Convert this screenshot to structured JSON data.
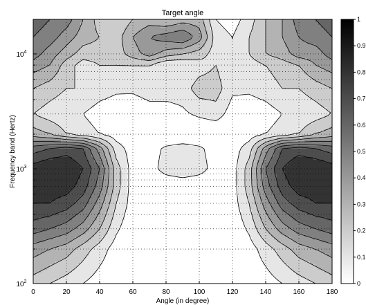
{
  "chart_data": {
    "type": "heatmap",
    "subtype": "filled-contour",
    "title": "Target angle",
    "xlabel": "Angle (in degree)",
    "ylabel": "Frequency band (Hertz)",
    "xlim": [
      0,
      180
    ],
    "xticks": [
      0,
      20,
      40,
      60,
      80,
      100,
      120,
      140,
      160,
      180
    ],
    "y_scale": "log",
    "ylim": [
      100,
      20000
    ],
    "yticks": [
      {
        "base": "10",
        "exp": "2",
        "value": 100
      },
      {
        "base": "10",
        "exp": "3",
        "value": 1000
      },
      {
        "base": "10",
        "exp": "4",
        "value": 10000
      }
    ],
    "grid": true,
    "colormap": "gray (white = 0, black = 1)",
    "colorbar": {
      "range": [
        0,
        1
      ],
      "ticks": [
        "0",
        "0.1",
        "0.2",
        "0.3",
        "0.4",
        "0.5",
        "0.6",
        "0.7",
        "0.8",
        "0.9",
        "1"
      ]
    },
    "contour_levels": [
      0.1,
      0.2,
      0.3,
      0.4,
      0.5,
      0.6,
      0.7,
      0.8,
      0.9
    ],
    "x": [
      0,
      10,
      20,
      30,
      40,
      50,
      60,
      70,
      80,
      90,
      100,
      110,
      120,
      130,
      140,
      150,
      160,
      170,
      180
    ],
    "y": [
      100,
      200,
      300,
      500,
      700,
      1000,
      1500,
      2000,
      3000,
      5000,
      8000,
      10000,
      14000,
      20000
    ],
    "z": [
      [
        0.25,
        0.2,
        0.15,
        0.1,
        0.05,
        0.02,
        0.0,
        0.0,
        0.0,
        0.0,
        0.0,
        0.0,
        0.0,
        0.02,
        0.05,
        0.1,
        0.15,
        0.2,
        0.25
      ],
      [
        0.45,
        0.4,
        0.35,
        0.25,
        0.15,
        0.05,
        0.0,
        0.0,
        0.0,
        0.0,
        0.0,
        0.0,
        0.0,
        0.05,
        0.15,
        0.25,
        0.35,
        0.4,
        0.45
      ],
      [
        0.65,
        0.6,
        0.55,
        0.45,
        0.3,
        0.12,
        0.02,
        0.0,
        0.0,
        0.0,
        0.0,
        0.0,
        0.02,
        0.12,
        0.3,
        0.45,
        0.55,
        0.6,
        0.65
      ],
      [
        0.8,
        0.8,
        0.75,
        0.65,
        0.45,
        0.2,
        0.05,
        0.0,
        0.0,
        0.0,
        0.0,
        0.0,
        0.05,
        0.2,
        0.45,
        0.65,
        0.75,
        0.8,
        0.8
      ],
      [
        0.85,
        0.85,
        0.85,
        0.75,
        0.55,
        0.25,
        0.05,
        0.0,
        0.0,
        0.0,
        0.0,
        0.0,
        0.05,
        0.25,
        0.55,
        0.75,
        0.85,
        0.85,
        0.85
      ],
      [
        0.85,
        0.9,
        0.9,
        0.8,
        0.6,
        0.25,
        0.05,
        0.05,
        0.15,
        0.2,
        0.15,
        0.05,
        0.05,
        0.25,
        0.6,
        0.8,
        0.9,
        0.9,
        0.85
      ],
      [
        0.65,
        0.7,
        0.75,
        0.7,
        0.45,
        0.15,
        0.05,
        0.05,
        0.12,
        0.15,
        0.12,
        0.05,
        0.05,
        0.15,
        0.45,
        0.7,
        0.75,
        0.7,
        0.65
      ],
      [
        0.35,
        0.3,
        0.2,
        0.15,
        0.1,
        0.05,
        0.02,
        0.0,
        0.0,
        0.0,
        0.0,
        0.0,
        0.02,
        0.05,
        0.1,
        0.15,
        0.2,
        0.3,
        0.35
      ],
      [
        0.2,
        0.15,
        0.12,
        0.1,
        0.05,
        0.03,
        0.02,
        0.05,
        0.05,
        0.08,
        0.12,
        0.15,
        0.05,
        0.03,
        0.05,
        0.1,
        0.12,
        0.15,
        0.2
      ],
      [
        0.3,
        0.25,
        0.2,
        0.2,
        0.15,
        0.12,
        0.12,
        0.15,
        0.15,
        0.15,
        0.25,
        0.25,
        0.12,
        0.12,
        0.15,
        0.2,
        0.2,
        0.25,
        0.3
      ],
      [
        0.45,
        0.4,
        0.25,
        0.15,
        0.2,
        0.2,
        0.2,
        0.2,
        0.1,
        0.1,
        0.15,
        0.2,
        0.1,
        0.15,
        0.2,
        0.25,
        0.3,
        0.4,
        0.45
      ],
      [
        0.55,
        0.45,
        0.35,
        0.25,
        0.25,
        0.25,
        0.35,
        0.45,
        0.35,
        0.3,
        0.25,
        0.15,
        0.1,
        0.2,
        0.3,
        0.35,
        0.45,
        0.45,
        0.55
      ],
      [
        0.6,
        0.55,
        0.45,
        0.35,
        0.3,
        0.25,
        0.4,
        0.5,
        0.55,
        0.6,
        0.45,
        0.15,
        0.1,
        0.2,
        0.3,
        0.4,
        0.5,
        0.55,
        0.6
      ],
      [
        0.65,
        0.6,
        0.55,
        0.4,
        0.25,
        0.2,
        0.3,
        0.35,
        0.3,
        0.35,
        0.35,
        0.1,
        0.05,
        0.15,
        0.3,
        0.4,
        0.55,
        0.6,
        0.65
      ]
    ]
  }
}
